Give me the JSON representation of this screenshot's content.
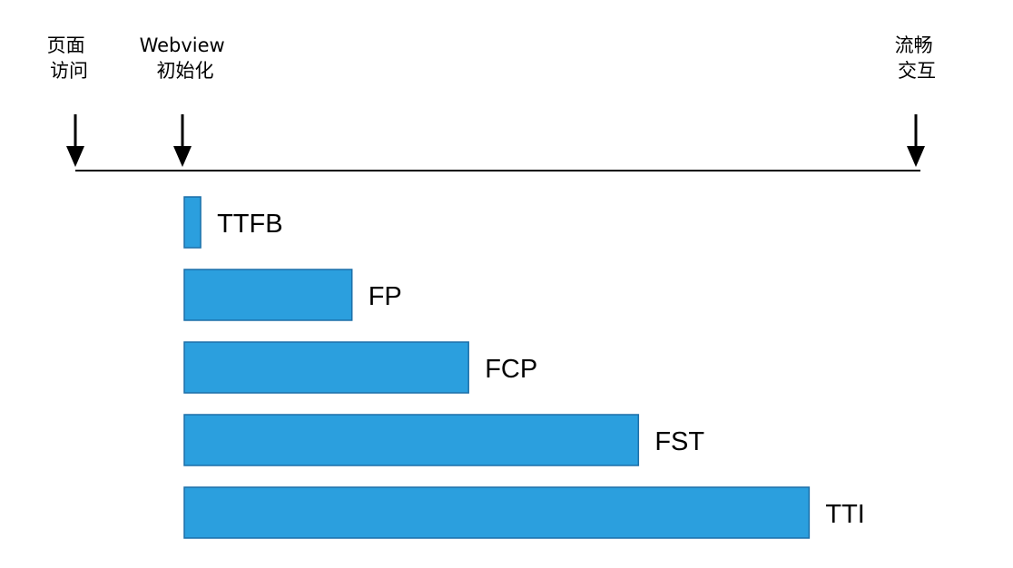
{
  "milestones": [
    {
      "id": "page-visit",
      "lines": [
        "页面",
        "访问"
      ]
    },
    {
      "id": "webview-init",
      "lines": [
        "Webview",
        "初始化"
      ]
    },
    {
      "id": "smooth-interaction",
      "lines": [
        "流畅",
        "交互"
      ]
    }
  ],
  "metrics": [
    {
      "label": "TTFB",
      "relative_end": 0.144
    },
    {
      "label": "FP",
      "relative_end": 0.323
    },
    {
      "label": "FCP",
      "relative_end": 0.461
    },
    {
      "label": "FST",
      "relative_end": 0.662
    },
    {
      "label": "TTI",
      "relative_end": 0.864
    }
  ],
  "colors": {
    "bar_fill": "#2b9fde",
    "bar_stroke": "#1c6fa8",
    "line": "#000000",
    "text": "#000000"
  }
}
